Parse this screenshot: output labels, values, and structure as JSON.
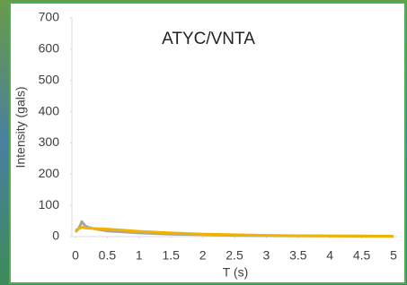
{
  "chart_data": {
    "type": "line",
    "title": "ATYC/VNTA",
    "x_label": "T (s)",
    "y_label": "Intensity (gals)",
    "x": [
      0,
      0.05,
      0.1,
      0.15,
      0.2,
      0.3,
      0.5,
      1,
      1.5,
      2,
      2.5,
      3,
      3.5,
      4,
      4.5,
      5
    ],
    "series": [
      {
        "color": "#a5a5a5",
        "values": [
          15,
          25,
          48,
          35,
          30,
          25,
          18,
          12,
          8,
          6,
          4,
          3,
          2,
          2,
          1,
          1
        ]
      },
      {
        "color": "#f0b400",
        "values": [
          20,
          25,
          30,
          28,
          27,
          26,
          24,
          17,
          12,
          8,
          6,
          4,
          3,
          2,
          2,
          1
        ]
      }
    ],
    "xlim": [
      0,
      5
    ],
    "xticks": [
      0,
      0.5,
      1,
      1.5,
      2,
      2.5,
      3,
      3.5,
      4,
      4.5,
      5
    ],
    "ylim": [
      0,
      700
    ],
    "yticks": [
      0,
      100,
      200,
      300,
      400,
      500,
      600,
      700
    ],
    "grid": false
  }
}
